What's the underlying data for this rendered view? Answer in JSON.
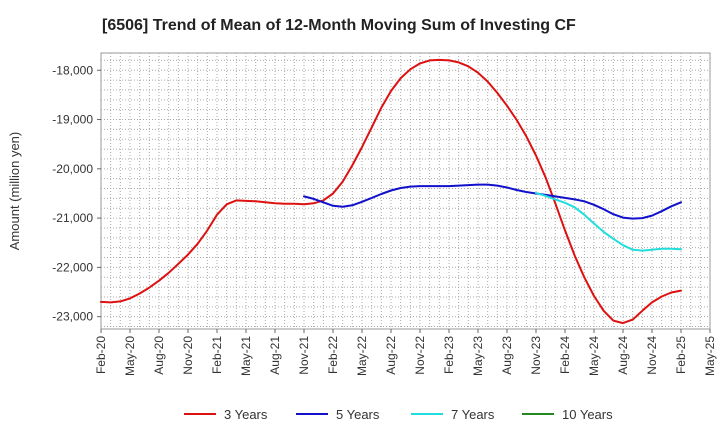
{
  "chart_data": {
    "type": "line",
    "title": "[6506]  Trend of Mean of 12-Month Moving Sum of Investing CF",
    "xlabel": "",
    "ylabel": "Amount (million yen)",
    "ylim": [
      -23250,
      -17650
    ],
    "yticks": [
      -18000,
      -19000,
      -20000,
      -21000,
      -22000,
      -23000
    ],
    "ytick_labels": [
      "-18,000",
      "-19,000",
      "-20,000",
      "-21,000",
      "-22,000",
      "-23,000"
    ],
    "xlim": [
      0,
      63
    ],
    "xticks": [
      0,
      3,
      6,
      9,
      12,
      15,
      18,
      21,
      24,
      27,
      30,
      33,
      36,
      39,
      42,
      45,
      48,
      51,
      54,
      57,
      60,
      63
    ],
    "xtick_labels": [
      "Feb-20",
      "May-20",
      "Aug-20",
      "Nov-20",
      "Feb-21",
      "May-21",
      "Aug-21",
      "Nov-21",
      "Feb-22",
      "May-22",
      "Aug-22",
      "Nov-22",
      "Feb-23",
      "May-23",
      "Aug-23",
      "Nov-23",
      "Feb-24",
      "May-24",
      "Aug-24",
      "Nov-24",
      "Feb-25",
      "May-25"
    ],
    "grid": true,
    "legend_position": "bottom",
    "series": [
      {
        "name": "3 Years",
        "color": "#dd1111",
        "x": [
          0,
          1,
          2,
          3,
          4,
          5,
          6,
          7,
          8,
          9,
          10,
          11,
          12,
          13,
          14,
          15,
          16,
          17,
          18,
          19,
          20,
          21,
          22,
          23,
          24,
          25,
          26,
          27,
          28,
          29,
          30,
          31,
          32,
          33,
          34,
          35,
          36,
          37,
          38,
          39,
          40,
          41,
          42,
          43,
          44,
          45,
          46,
          47,
          48,
          49,
          50,
          51,
          52,
          53,
          54,
          55,
          56,
          57,
          58,
          59,
          60
        ],
        "values": [
          -22700,
          -22710,
          -22690,
          -22630,
          -22530,
          -22410,
          -22270,
          -22110,
          -21930,
          -21740,
          -21520,
          -21250,
          -20930,
          -20720,
          -20640,
          -20650,
          -20660,
          -20680,
          -20700,
          -20710,
          -20710,
          -20720,
          -20700,
          -20640,
          -20500,
          -20260,
          -19930,
          -19560,
          -19160,
          -18760,
          -18420,
          -18160,
          -17980,
          -17860,
          -17800,
          -17790,
          -17800,
          -17840,
          -17920,
          -18050,
          -18230,
          -18460,
          -18720,
          -19010,
          -19340,
          -19730,
          -20180,
          -20700,
          -21250,
          -21760,
          -22200,
          -22580,
          -22880,
          -23080,
          -23130,
          -23060,
          -22880,
          -22710,
          -22590,
          -22510,
          -22470
        ]
      },
      {
        "name": "5 Years",
        "color": "#1111cc",
        "x": [
          21,
          22,
          23,
          24,
          25,
          26,
          27,
          28,
          29,
          30,
          31,
          32,
          33,
          34,
          35,
          36,
          37,
          38,
          39,
          40,
          41,
          42,
          43,
          44,
          45,
          46,
          47,
          48,
          49,
          50,
          51,
          52,
          53,
          54,
          55,
          56,
          57,
          58,
          59,
          60
        ],
        "values": [
          -20560,
          -20610,
          -20680,
          -20750,
          -20770,
          -20740,
          -20670,
          -20590,
          -20510,
          -20440,
          -20390,
          -20360,
          -20350,
          -20350,
          -20350,
          -20350,
          -20340,
          -20330,
          -20320,
          -20320,
          -20340,
          -20380,
          -20430,
          -20470,
          -20500,
          -20530,
          -20560,
          -20590,
          -20620,
          -20660,
          -20730,
          -20820,
          -20920,
          -20990,
          -21010,
          -21000,
          -20950,
          -20860,
          -20760,
          -20680
        ]
      },
      {
        "name": "7 Years",
        "color": "#22dddd",
        "x": [
          45,
          46,
          47,
          48,
          49,
          50,
          51,
          52,
          53,
          54,
          55,
          56,
          57,
          58,
          59,
          60
        ],
        "values": [
          -20490,
          -20550,
          -20620,
          -20690,
          -20780,
          -20930,
          -21110,
          -21280,
          -21420,
          -21550,
          -21640,
          -21660,
          -21640,
          -21620,
          -21620,
          -21630
        ]
      },
      {
        "name": "10 Years",
        "color": "#228822",
        "x": [],
        "values": []
      }
    ]
  }
}
